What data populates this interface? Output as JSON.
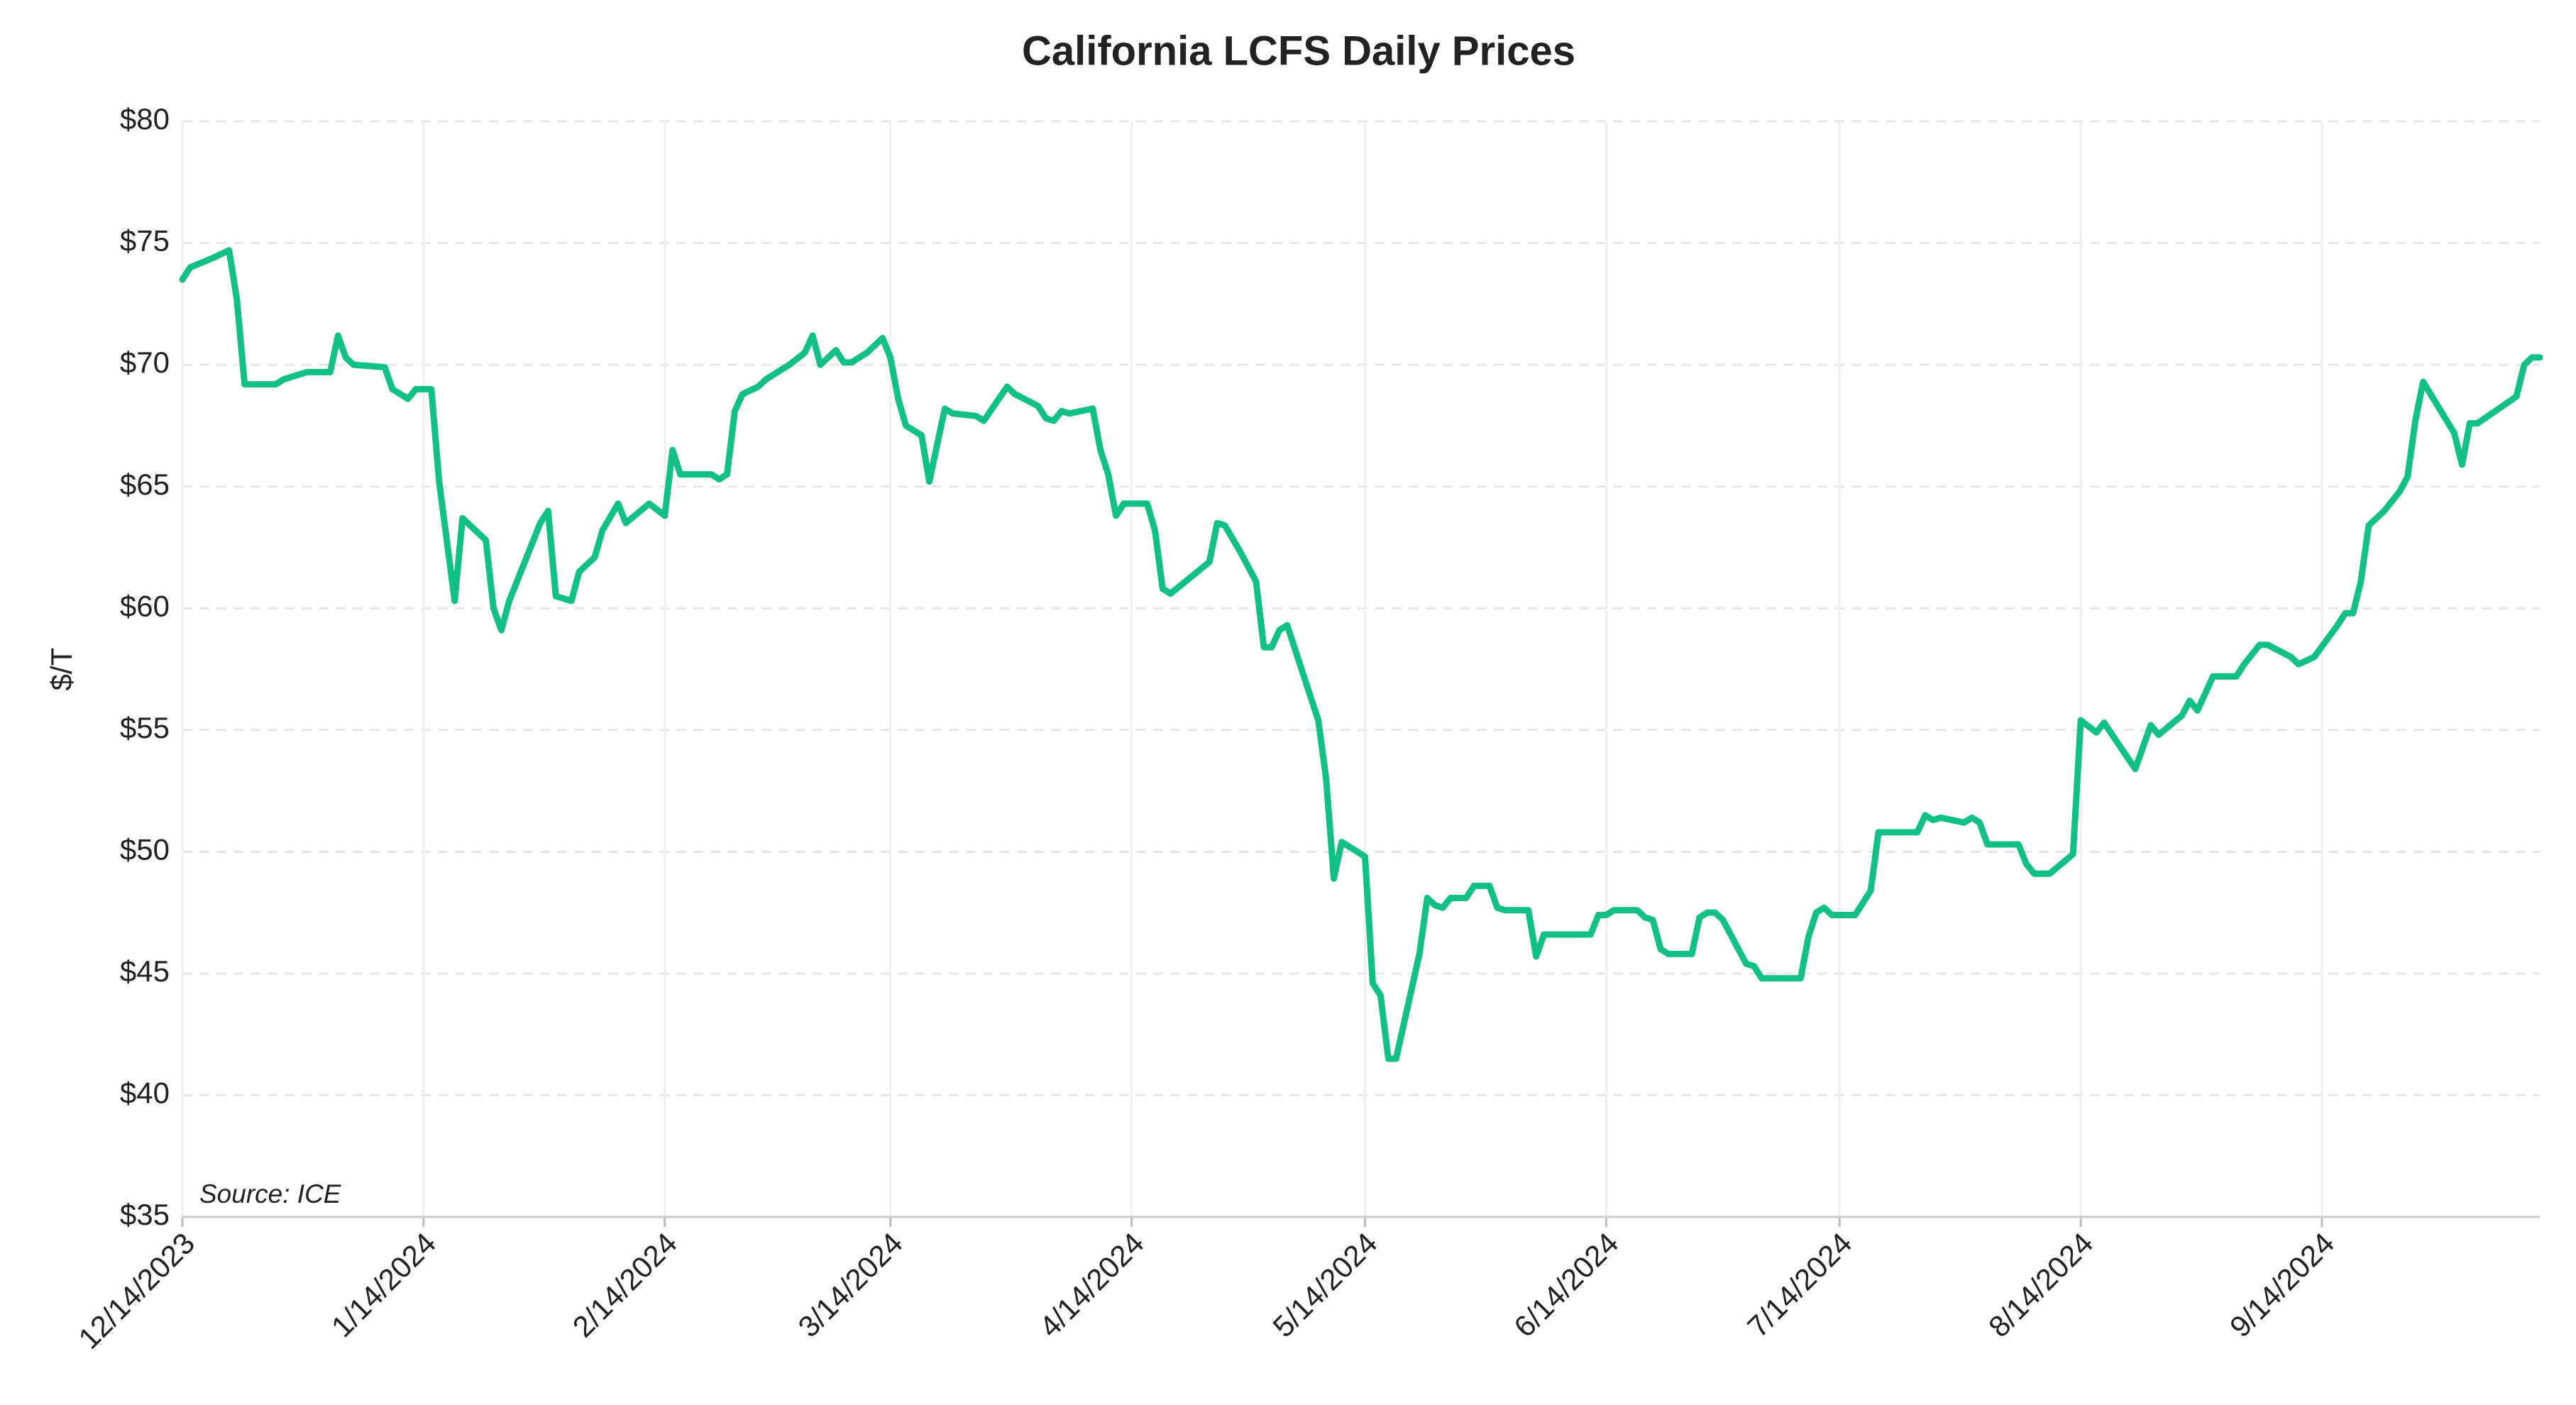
{
  "chart_data": {
    "type": "line",
    "title": "California LCFS Daily Prices",
    "y_label": "$/T",
    "annotation": "Source: ICE",
    "grid": true,
    "color": "#12bf85",
    "xlim": [
      "2023-12-14",
      "2024-10-12"
    ],
    "xticks": [
      {
        "value": "2023-12-14",
        "label": "12/14/2023"
      },
      {
        "value": "2024-01-14",
        "label": "1/14/2024"
      },
      {
        "value": "2024-02-14",
        "label": "2/14/2024"
      },
      {
        "value": "2024-03-14",
        "label": "3/14/2024"
      },
      {
        "value": "2024-04-14",
        "label": "4/14/2024"
      },
      {
        "value": "2024-05-14",
        "label": "5/14/2024"
      },
      {
        "value": "2024-06-14",
        "label": "6/14/2024"
      },
      {
        "value": "2024-07-14",
        "label": "7/14/2024"
      },
      {
        "value": "2024-08-14",
        "label": "8/14/2024"
      },
      {
        "value": "2024-09-14",
        "label": "9/14/2024"
      }
    ],
    "ylim": [
      35,
      80
    ],
    "yticks": [
      {
        "value": 35,
        "label": "$35"
      },
      {
        "value": 40,
        "label": "$40"
      },
      {
        "value": 45,
        "label": "$45"
      },
      {
        "value": 50,
        "label": "$50"
      },
      {
        "value": 55,
        "label": "$55"
      },
      {
        "value": 60,
        "label": "$60"
      },
      {
        "value": 65,
        "label": "$65"
      },
      {
        "value": 70,
        "label": "$70"
      },
      {
        "value": 75,
        "label": "$75"
      },
      {
        "value": 80,
        "label": "$80"
      }
    ],
    "x": [
      "2023-12-14",
      "2023-12-15",
      "2023-12-18",
      "2023-12-20",
      "2023-12-21",
      "2023-12-22",
      "2023-12-26",
      "2023-12-27",
      "2023-12-29",
      "2023-12-30",
      "2024-01-02",
      "2024-01-03",
      "2024-01-04",
      "2024-01-05",
      "2024-01-09",
      "2024-01-10",
      "2024-01-11",
      "2024-01-12",
      "2024-01-13",
      "2024-01-15",
      "2024-01-16",
      "2024-01-18",
      "2024-01-19",
      "2024-01-22",
      "2024-01-23",
      "2024-01-24",
      "2024-01-25",
      "2024-01-29",
      "2024-01-30",
      "2024-01-31",
      "2024-02-02",
      "2024-02-03",
      "2024-02-05",
      "2024-02-06",
      "2024-02-08",
      "2024-02-09",
      "2024-02-12",
      "2024-02-14",
      "2024-02-15",
      "2024-02-16",
      "2024-02-20",
      "2024-02-21",
      "2024-02-22",
      "2024-02-23",
      "2024-02-24",
      "2024-02-26",
      "2024-02-27",
      "2024-02-28",
      "2024-03-01",
      "2024-03-03",
      "2024-03-04",
      "2024-03-05",
      "2024-03-07",
      "2024-03-08",
      "2024-03-09",
      "2024-03-11",
      "2024-03-13",
      "2024-03-14",
      "2024-03-15",
      "2024-03-16",
      "2024-03-18",
      "2024-03-19",
      "2024-03-21",
      "2024-03-22",
      "2024-03-25",
      "2024-03-26",
      "2024-03-29",
      "2024-03-30",
      "2024-04-02",
      "2024-04-03",
      "2024-04-04",
      "2024-04-05",
      "2024-04-06",
      "2024-04-09",
      "2024-04-10",
      "2024-04-11",
      "2024-04-12",
      "2024-04-13",
      "2024-04-16",
      "2024-04-17",
      "2024-04-18",
      "2024-04-19",
      "2024-04-24",
      "2024-04-25",
      "2024-04-26",
      "2024-04-28",
      "2024-04-30",
      "2024-05-01",
      "2024-05-02",
      "2024-05-03",
      "2024-05-04",
      "2024-05-08",
      "2024-05-09",
      "2024-05-10",
      "2024-05-11",
      "2024-05-14",
      "2024-05-15",
      "2024-05-16",
      "2024-05-17",
      "2024-05-18",
      "2024-05-21",
      "2024-05-22",
      "2024-05-23",
      "2024-05-24",
      "2024-05-25",
      "2024-05-27",
      "2024-05-28",
      "2024-05-30",
      "2024-05-31",
      "2024-06-01",
      "2024-06-04",
      "2024-06-05",
      "2024-06-06",
      "2024-06-12",
      "2024-06-13",
      "2024-06-14",
      "2024-06-15",
      "2024-06-18",
      "2024-06-19",
      "2024-06-20",
      "2024-06-21",
      "2024-06-22",
      "2024-06-25",
      "2024-06-26",
      "2024-06-27",
      "2024-06-28",
      "2024-06-29",
      "2024-07-02",
      "2024-07-03",
      "2024-07-04",
      "2024-07-09",
      "2024-07-10",
      "2024-07-11",
      "2024-07-12",
      "2024-07-13",
      "2024-07-16",
      "2024-07-18",
      "2024-07-19",
      "2024-07-24",
      "2024-07-25",
      "2024-07-26",
      "2024-07-27",
      "2024-07-30",
      "2024-07-31",
      "2024-08-01",
      "2024-08-02",
      "2024-08-06",
      "2024-08-07",
      "2024-08-08",
      "2024-08-10",
      "2024-08-13",
      "2024-08-14",
      "2024-08-16",
      "2024-08-17",
      "2024-08-21",
      "2024-08-23",
      "2024-08-24",
      "2024-08-27",
      "2024-08-28",
      "2024-08-29",
      "2024-08-31",
      "2024-09-03",
      "2024-09-04",
      "2024-09-06",
      "2024-09-07",
      "2024-09-10",
      "2024-09-11",
      "2024-09-13",
      "2024-09-16",
      "2024-09-17",
      "2024-09-18",
      "2024-09-19",
      "2024-09-20",
      "2024-09-22",
      "2024-09-24",
      "2024-09-25",
      "2024-09-26",
      "2024-09-27",
      "2024-10-01",
      "2024-10-02",
      "2024-10-03",
      "2024-10-04",
      "2024-10-09",
      "2024-10-10",
      "2024-10-11",
      "2024-10-12"
    ],
    "series": [
      {
        "name": "LCFS",
        "color": "#12bf85",
        "values": [
          73.5,
          74.0,
          74.4,
          74.7,
          72.7,
          69.2,
          69.2,
          69.4,
          69.6,
          69.7,
          69.7,
          71.2,
          70.3,
          70.0,
          69.9,
          69.0,
          68.8,
          68.6,
          69.0,
          69.0,
          65.2,
          60.3,
          63.7,
          62.8,
          60.0,
          59.1,
          60.3,
          63.5,
          64.0,
          60.5,
          60.3,
          61.5,
          62.1,
          63.2,
          64.3,
          63.5,
          64.3,
          63.8,
          66.5,
          65.5,
          65.5,
          65.3,
          65.5,
          68.1,
          68.8,
          69.1,
          69.4,
          69.6,
          70.0,
          70.5,
          71.2,
          70.0,
          70.6,
          70.1,
          70.1,
          70.5,
          71.1,
          70.3,
          68.6,
          67.5,
          67.1,
          65.2,
          68.2,
          68.0,
          67.9,
          67.7,
          69.1,
          68.8,
          68.3,
          67.8,
          67.7,
          68.1,
          68.0,
          68.2,
          66.5,
          65.5,
          63.8,
          64.3,
          64.3,
          63.2,
          60.8,
          60.6,
          61.9,
          63.5,
          63.4,
          62.3,
          61.1,
          58.4,
          58.4,
          59.1,
          59.3,
          55.4,
          53.0,
          48.9,
          50.4,
          49.8,
          44.6,
          44.1,
          41.5,
          41.5,
          45.8,
          48.1,
          47.8,
          47.7,
          48.1,
          48.1,
          48.6,
          48.6,
          47.7,
          47.6,
          47.6,
          45.7,
          46.6,
          46.6,
          47.4,
          47.4,
          47.6,
          47.6,
          47.3,
          47.2,
          46.0,
          45.8,
          45.8,
          47.3,
          47.5,
          47.5,
          47.2,
          45.4,
          45.3,
          44.8,
          44.8,
          46.5,
          47.5,
          47.7,
          47.4,
          47.4,
          48.4,
          50.8,
          50.8,
          51.5,
          51.3,
          51.4,
          51.2,
          51.4,
          51.2,
          50.3,
          50.3,
          49.5,
          49.1,
          49.1,
          49.9,
          55.4,
          54.9,
          55.3,
          53.4,
          55.2,
          54.8,
          55.6,
          56.2,
          55.8,
          57.2,
          57.2,
          57.7,
          58.5,
          58.5,
          58.0,
          57.7,
          58.0,
          59.3,
          59.8,
          59.8,
          61.1,
          63.4,
          64.0,
          64.8,
          65.4,
          67.7,
          69.3,
          67.2,
          65.9,
          67.6,
          67.6,
          68.7,
          70.0,
          70.3,
          70.3
        ]
      }
    ]
  }
}
